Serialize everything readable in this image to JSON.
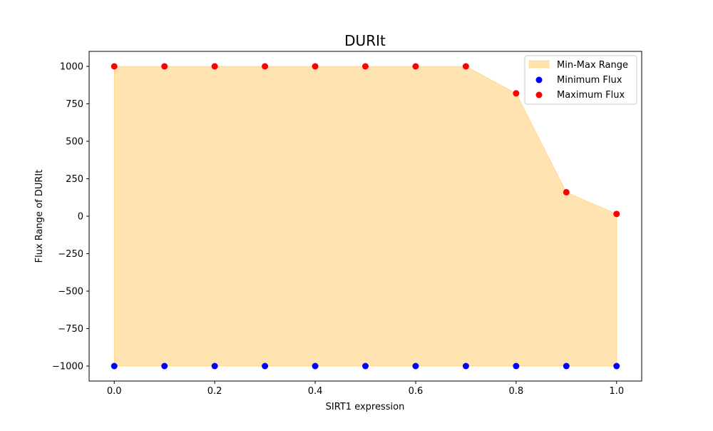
{
  "chart_data": {
    "type": "area",
    "title": "DURIt",
    "xlabel": "SIRT1 expression",
    "ylabel": "Flux Range of DURIt",
    "xlim": [
      -0.05,
      1.05
    ],
    "ylim": [
      -1100,
      1100
    ],
    "x_ticks": [
      0.0,
      0.2,
      0.4,
      0.6,
      0.8,
      1.0
    ],
    "x_tick_labels": [
      "0.0",
      "0.2",
      "0.4",
      "0.6",
      "0.8",
      "1.0"
    ],
    "y_ticks": [
      1000,
      750,
      500,
      250,
      0,
      -250,
      -500,
      -750,
      -1000
    ],
    "y_tick_labels": [
      "1000",
      "750",
      "500",
      "250",
      "0",
      "−250",
      "−500",
      "−750",
      "−1000"
    ],
    "x": [
      0.0,
      0.1,
      0.2,
      0.3,
      0.4,
      0.5,
      0.6,
      0.7,
      0.8,
      0.9,
      1.0
    ],
    "series": [
      {
        "name": "Minimum Flux",
        "kind": "scatter",
        "color": "#0000ff",
        "values": [
          -1000,
          -1000,
          -1000,
          -1000,
          -1000,
          -1000,
          -1000,
          -1000,
          -1000,
          -1000,
          -1000
        ]
      },
      {
        "name": "Maximum Flux",
        "kind": "scatter",
        "color": "#ff0000",
        "values": [
          1000,
          1000,
          1000,
          1000,
          1000,
          1000,
          1000,
          1000,
          820,
          160,
          15
        ]
      }
    ],
    "fill": {
      "name": "Min-Max Range",
      "color": "#ffa500",
      "opacity": 0.3
    },
    "grid": false,
    "legend_position": "upper right"
  }
}
